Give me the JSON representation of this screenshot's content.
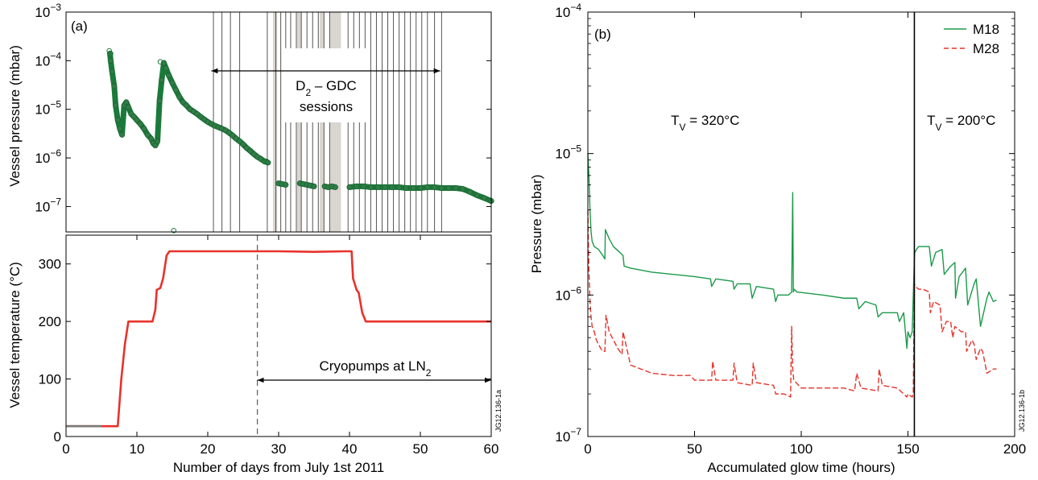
{
  "chart_data": [
    {
      "id": "a-top",
      "type": "scatter",
      "panel_label": "(a)",
      "ylabel": "Vessel pressure (mbar)",
      "yscale": "log",
      "ylim": [
        3e-08,
        0.001
      ],
      "xlim": [
        0,
        60
      ],
      "y_ticks": [
        {
          "value": 0.001,
          "base": "10",
          "exp": "−3"
        },
        {
          "value": 0.0001,
          "base": "10",
          "exp": "−4"
        },
        {
          "value": 1e-05,
          "base": "10",
          "exp": "−5"
        },
        {
          "value": 1e-06,
          "base": "10",
          "exp": "−6"
        },
        {
          "value": 1e-07,
          "base": "10",
          "exp": "−7"
        }
      ],
      "annotation": {
        "line1_main": "D",
        "line1_sub": "2",
        "line1_rest": " – GDC",
        "line2": "sessions",
        "arrow_x": [
          20.5,
          52.8
        ]
      },
      "gdc_session_lines": [
        20.8,
        22,
        23.2,
        24.5,
        28.4,
        29.6,
        30.3,
        31,
        31.7,
        32.5,
        33.2,
        34,
        34.8,
        35.6,
        36.4,
        37.2,
        39.8,
        40.6,
        41.4,
        42.2,
        43,
        43.8,
        44.6,
        45.4,
        46.2,
        47,
        47.8,
        48.6,
        49.4,
        50.2,
        51,
        52,
        53
      ],
      "gdc_shaded_ranges": [
        [
          29.2,
          29.8
        ],
        [
          32.6,
          33.2
        ],
        [
          35.8,
          36.4
        ],
        [
          37.2,
          38.8
        ]
      ],
      "series": [
        {
          "color": "#1a7a3a",
          "x": [
            6.2,
            6.3,
            6.5,
            6.8,
            7.0,
            7.3,
            7.6,
            7.9,
            8.2,
            8.5,
            8.8,
            9.2,
            9.6,
            10,
            10.5,
            11,
            11.5,
            12,
            12.3,
            12.6,
            12.9,
            13.2,
            13.5,
            13.8,
            14.1,
            14.5,
            15,
            15.5,
            16,
            16.5,
            17,
            17.5,
            18,
            18.5,
            19,
            19.5,
            20,
            20.5,
            21,
            21.5,
            22,
            22.5,
            23,
            23.5,
            24,
            24.5,
            25,
            25.5,
            26,
            26.5,
            27,
            27.5,
            28,
            28.5,
            30,
            30.5,
            31,
            33,
            33.5,
            34,
            34.5,
            35,
            36.5,
            37,
            37.5,
            38,
            40,
            41,
            42,
            43,
            44,
            45,
            46,
            47,
            48,
            49,
            50,
            51,
            52,
            53,
            54,
            55,
            56,
            57,
            58,
            59,
            60
          ],
          "y": [
            0.00014,
            0.0001,
            6e-05,
            3e-05,
            1.2e-05,
            6e-06,
            4e-06,
            3e-06,
            1.2e-05,
            1.4e-05,
            1.1e-05,
            8e-06,
            7e-06,
            6e-06,
            5e-06,
            4e-06,
            3e-06,
            2.5e-06,
            2e-06,
            1.8e-06,
            2.2e-06,
            1.5e-05,
            4e-05,
            9e-05,
            7e-05,
            5e-05,
            3.5e-05,
            2.5e-05,
            1.8e-05,
            1.4e-05,
            1.2e-05,
            1e-05,
            9e-06,
            8e-06,
            7e-06,
            6.2e-06,
            5.5e-06,
            5e-06,
            4.6e-06,
            4.3e-06,
            4e-06,
            3.7e-06,
            3.3e-06,
            2.9e-06,
            2.5e-06,
            2.2e-06,
            1.9e-06,
            1.6e-06,
            1.4e-06,
            1.2e-06,
            1.05e-06,
            9.5e-07,
            8.5e-07,
            8e-07,
            3e-07,
            2.9e-07,
            2.8e-07,
            3e-07,
            2.9e-07,
            2.8e-07,
            2.7e-07,
            2.6e-07,
            2.6e-07,
            2.5e-07,
            2.6e-07,
            2.5e-07,
            2.5e-07,
            2.6e-07,
            2.6e-07,
            2.5e-07,
            2.5e-07,
            2.5e-07,
            2.5e-07,
            2.5e-07,
            2.4e-07,
            2.4e-07,
            2.4e-07,
            2.5e-07,
            2.5e-07,
            2.4e-07,
            2.4e-07,
            2.4e-07,
            2.3e-07,
            2e-07,
            1.7e-07,
            1.5e-07,
            1.3e-07
          ]
        }
      ],
      "outliers": [
        {
          "x": 6.1,
          "y": 0.00016
        },
        {
          "x": 6.3,
          "y": 0.00014
        },
        {
          "x": 13.3,
          "y": 9.5e-05
        },
        {
          "x": 28.3,
          "y": 8.5e-07
        },
        {
          "x": 15.2,
          "y": 3.2e-08
        }
      ]
    },
    {
      "id": "a-bottom",
      "type": "line",
      "ylabel": "Vessel temperature (°C)",
      "xlabel": "Number of days from July 1st 2011",
      "ylim": [
        0,
        350
      ],
      "xlim": [
        0,
        60
      ],
      "x_ticks": [
        0,
        10,
        20,
        30,
        40,
        50,
        60
      ],
      "y_ticks": [
        0,
        100,
        200,
        300
      ],
      "vline_dashed": 27,
      "annotation": {
        "text_main": "Cryopumps at LN",
        "text_sub": "2",
        "arrow_x": [
          27,
          60
        ]
      },
      "side_label": "JG12.136-1a",
      "series": [
        {
          "color": "#e8322a",
          "x": [
            0,
            5,
            7.3,
            7.8,
            8.3,
            8.8,
            9.2,
            11,
            12.2,
            12.6,
            12.8,
            13.3,
            13.7,
            14.2,
            14.6,
            15,
            20,
            25,
            30,
            35,
            39.5,
            40.3,
            40.5,
            41,
            41.3,
            41.8,
            42.3,
            45,
            50,
            55,
            60
          ],
          "y": [
            18,
            18,
            18,
            100,
            160,
            200,
            200,
            200,
            200,
            220,
            255,
            258,
            275,
            315,
            322,
            322,
            322,
            322,
            322,
            321,
            322,
            322,
            275,
            255,
            250,
            215,
            200,
            200,
            200,
            200,
            200
          ]
        }
      ]
    },
    {
      "id": "b",
      "type": "line",
      "panel_label": "(b)",
      "ylabel": "Pressure (mbar)",
      "xlabel": "Accumulated glow time (hours)",
      "yscale": "log",
      "ylim": [
        1e-07,
        0.0001
      ],
      "xlim": [
        0,
        200
      ],
      "x_ticks": [
        0,
        50,
        100,
        150,
        200
      ],
      "y_ticks": [
        {
          "value": 0.0001,
          "base": "10",
          "exp": "−4"
        },
        {
          "value": 1e-05,
          "base": "10",
          "exp": "−5"
        },
        {
          "value": 1e-06,
          "base": "10",
          "exp": "−6"
        },
        {
          "value": 1e-07,
          "base": "10",
          "exp": "−7"
        }
      ],
      "vline_solid": 153,
      "annotations": [
        {
          "text_main": "T",
          "text_sub": "V",
          "text_rest": " = 320°C",
          "x": 55,
          "y": 1.6e-05
        },
        {
          "text_main": "T",
          "text_sub": "V",
          "text_rest": " = 200°C",
          "x": 175,
          "y": 1.6e-05
        }
      ],
      "side_label": "JG12.136-1b",
      "legend": {
        "position": "top-right",
        "items": [
          "M18",
          "M28"
        ]
      },
      "series": [
        {
          "name": "M18",
          "color": "#1a9a4a",
          "dash": "solid",
          "x": [
            0,
            0.5,
            1,
            1.5,
            2,
            3,
            5,
            6,
            7,
            8,
            8.2,
            10,
            12,
            15,
            16.5,
            17,
            20,
            30,
            40,
            50,
            57.5,
            58,
            60,
            68,
            68.5,
            70,
            76,
            77,
            79,
            87,
            88,
            89,
            94,
            95.5,
            96,
            96.3,
            96.6,
            98,
            110,
            120,
            126,
            127,
            130,
            135,
            136,
            138,
            145,
            146,
            148,
            149.5,
            150,
            151,
            152,
            152.5,
            153,
            153.2,
            154,
            155,
            157,
            160,
            161,
            163,
            166,
            167,
            170,
            172,
            172.3,
            174,
            177,
            178,
            181,
            182,
            184,
            187,
            188,
            190,
            191.5
          ],
          "y": [
            1e-05,
            7e-06,
            4e-06,
            2.8e-06,
            2.4e-06,
            2.2e-06,
            2.1e-06,
            2e-06,
            1.9e-06,
            1.8e-06,
            2.9e-06,
            2.5e-06,
            2.2e-06,
            2e-06,
            1.9e-06,
            1.6e-06,
            1.55e-06,
            1.45e-06,
            1.4e-06,
            1.35e-06,
            1.3e-06,
            1.15e-06,
            1.3e-06,
            1.25e-06,
            1.1e-06,
            1.2e-06,
            1.2e-06,
            9.5e-07,
            1.15e-06,
            1.1e-06,
            9e-07,
            1e-06,
            1e-06,
            1.05e-06,
            5.3e-06,
            1.05e-06,
            1.1e-06,
            1.05e-06,
            1e-06,
            9.5e-07,
            9.5e-07,
            8e-07,
            9e-07,
            8.5e-07,
            7e-07,
            7.5e-07,
            7.5e-07,
            6.5e-07,
            7.5e-07,
            4.2e-07,
            5.5e-07,
            5e-07,
            5.5e-07,
            1e-06,
            1.8e-06,
            2e-06,
            2.1e-06,
            2.2e-06,
            2.2e-06,
            2.2e-06,
            1.6e-06,
            2e-06,
            2.1e-06,
            1.4e-06,
            1.6e-06,
            1.7e-06,
            9.5e-07,
            1.35e-06,
            1.55e-06,
            8.5e-07,
            1.2e-06,
            1.3e-06,
            6e-07,
            9.5e-07,
            1.05e-06,
            9e-07,
            9.2e-07
          ]
        },
        {
          "name": "M28",
          "color": "#e8322a",
          "dash": "dashed",
          "x": [
            0,
            0.5,
            1,
            1.5,
            2,
            3,
            4,
            5,
            6,
            7,
            8,
            8.5,
            10,
            14,
            16,
            16.5,
            20,
            30,
            40,
            48,
            50,
            58,
            58.5,
            60,
            68,
            68.5,
            70,
            77,
            77.5,
            79,
            87,
            88,
            92,
            95,
            95.5,
            96,
            96.5,
            100,
            110,
            120,
            125,
            126,
            128,
            136,
            136.5,
            138,
            145,
            148,
            149.5,
            150,
            152,
            152.5,
            153,
            153.5,
            155,
            157,
            160,
            160.5,
            162,
            165,
            166,
            168,
            170,
            171,
            172,
            175,
            177,
            177.5,
            180,
            181,
            182,
            184,
            185,
            187,
            190,
            191.5
          ],
          "y": [
            4e-06,
            1.5e-06,
            9e-07,
            7e-07,
            6e-07,
            5.5e-07,
            4.8e-07,
            4.5e-07,
            4.2e-07,
            4e-07,
            4e-07,
            7.2e-07,
            5.5e-07,
            4.2e-07,
            3.8e-07,
            5.5e-07,
            3.2e-07,
            2.8e-07,
            2.7e-07,
            2.7e-07,
            2.5e-07,
            2.5e-07,
            3.4e-07,
            2.5e-07,
            2.5e-07,
            3.3e-07,
            2.4e-07,
            2.3e-07,
            3.3e-07,
            2.4e-07,
            2.3e-07,
            2e-07,
            2e-07,
            1.9e-07,
            6e-07,
            3e-07,
            2.5e-07,
            2.2e-07,
            2.2e-07,
            2.2e-07,
            2.1e-07,
            2.8e-07,
            2.2e-07,
            2.1e-07,
            3e-07,
            2.3e-07,
            2.2e-07,
            2e-07,
            1.9e-07,
            2e-07,
            1.9e-07,
            2e-07,
            1.2e-06,
            1.15e-06,
            1.1e-06,
            1.1e-06,
            1.05e-06,
            7.5e-07,
            9e-07,
            8.5e-07,
            5.5e-07,
            6.5e-07,
            6.5e-07,
            5e-07,
            6e-07,
            5.5e-07,
            5.5e-07,
            4e-07,
            4.8e-07,
            4.5e-07,
            3.5e-07,
            4.2e-07,
            4e-07,
            2.8e-07,
            3e-07,
            3e-07
          ]
        }
      ]
    }
  ]
}
